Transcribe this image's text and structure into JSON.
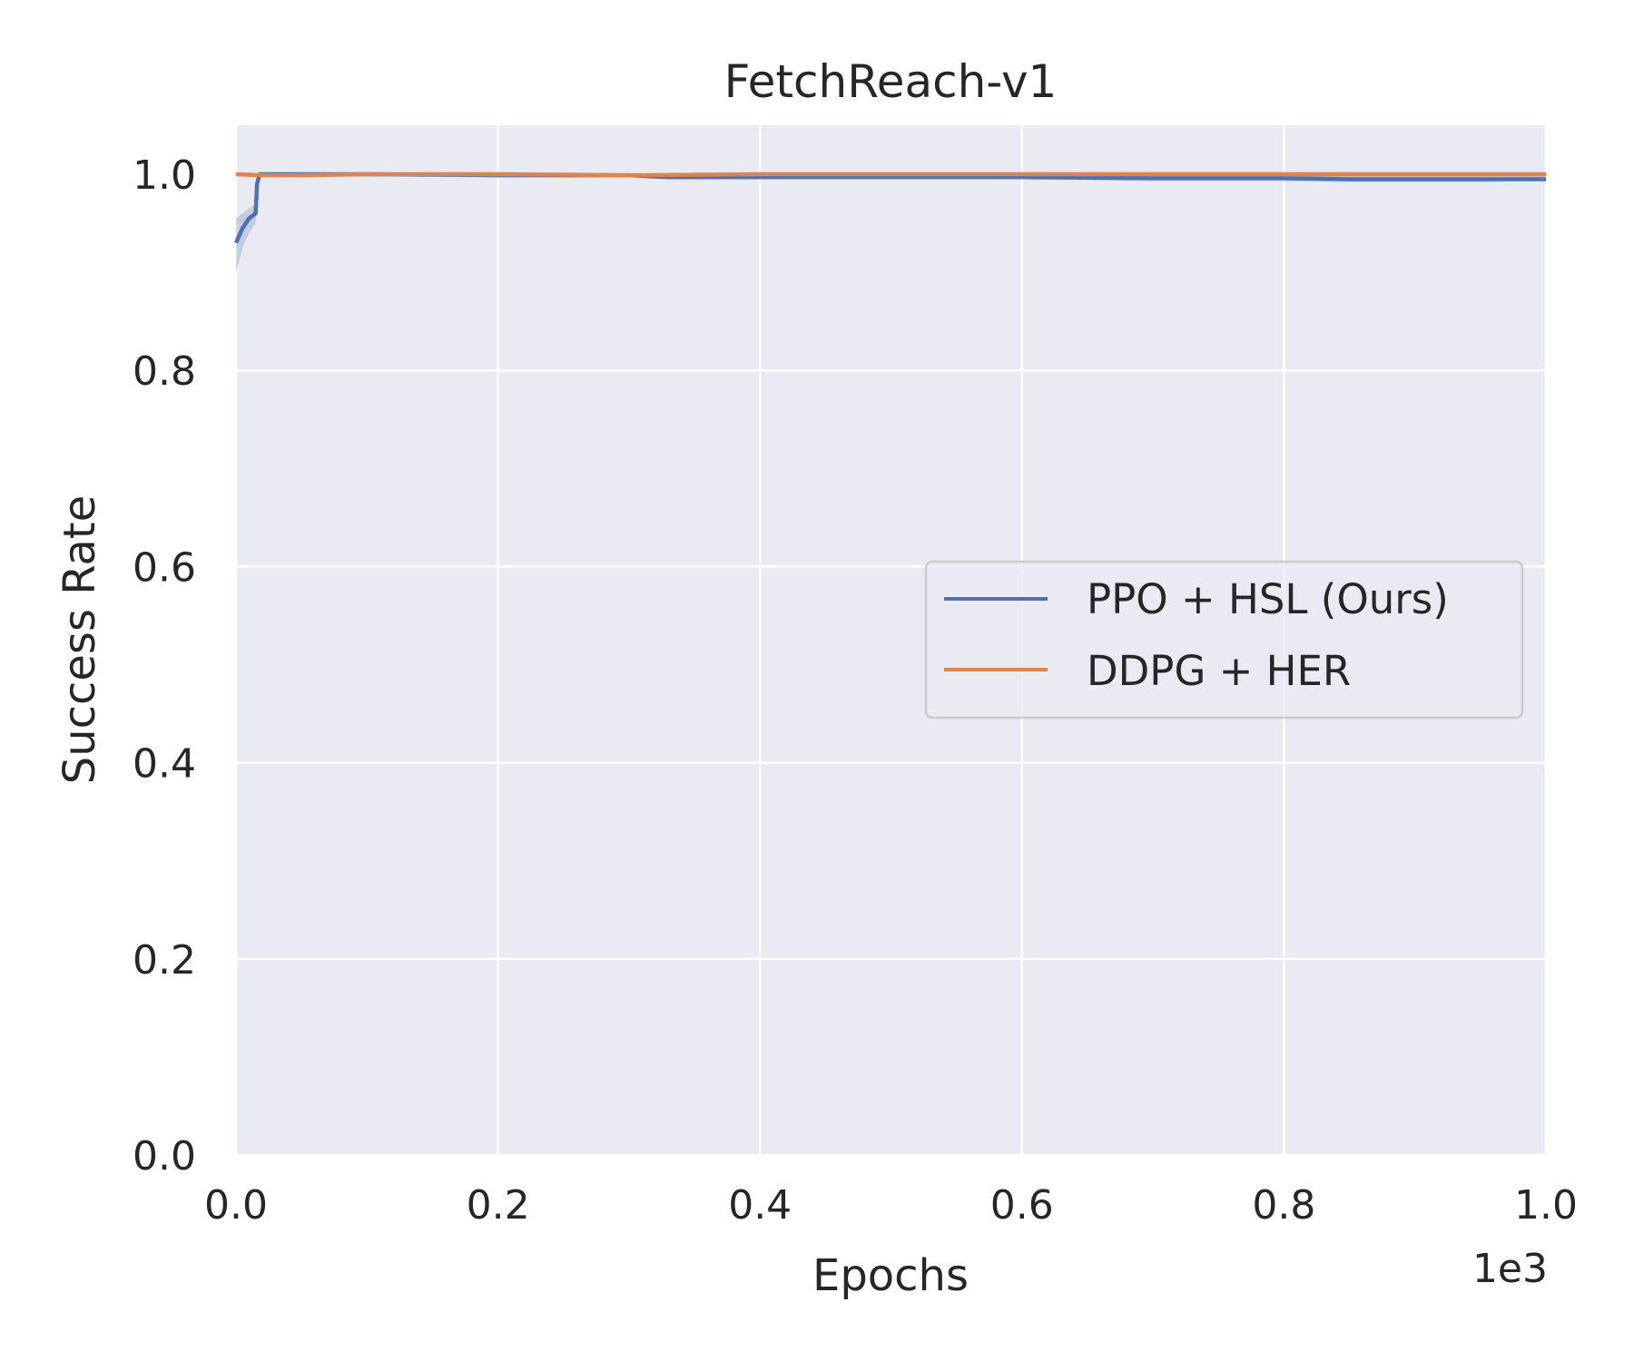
{
  "chart_data": {
    "type": "line",
    "title": "FetchReach-v1",
    "xlabel": "Epochs",
    "ylabel": "Success Rate",
    "x_offset_label": "1e3",
    "xlim": [
      0,
      1000
    ],
    "ylim": [
      0,
      1.05
    ],
    "x_ticks": [
      0,
      200,
      400,
      600,
      800,
      1000
    ],
    "x_tick_labels": [
      "0.0",
      "0.2",
      "0.4",
      "0.6",
      "0.8",
      "1.0"
    ],
    "y_ticks": [
      0,
      0.2,
      0.4,
      0.6,
      0.8,
      1.0
    ],
    "y_tick_labels": [
      "0.0",
      "0.2",
      "0.4",
      "0.6",
      "0.8",
      "1.0"
    ],
    "grid": true,
    "legend_position": "center-right",
    "series": [
      {
        "name": "PPO + HSL (Ours)",
        "color": "#4c72b0",
        "x": [
          0,
          5,
          10,
          15,
          16,
          18,
          20,
          30,
          100,
          200,
          300,
          330,
          400,
          500,
          600,
          700,
          800,
          850,
          900,
          950,
          1000
        ],
        "y": [
          0.93,
          0.945,
          0.955,
          0.96,
          0.99,
          1.0,
          1.0,
          1.0,
          1.0,
          0.999,
          0.999,
          0.997,
          0.997,
          0.997,
          0.997,
          0.996,
          0.996,
          0.995,
          0.995,
          0.995,
          0.995
        ],
        "band_lower": [
          0.9,
          0.925,
          0.94,
          0.95,
          0.98,
          0.995,
          0.998,
          0.998,
          0.998,
          0.997,
          0.997,
          0.995,
          0.995,
          0.995,
          0.995,
          0.993,
          0.993,
          0.992,
          0.992,
          0.992,
          0.993
        ],
        "band_upper": [
          0.955,
          0.96,
          0.965,
          0.97,
          0.998,
          1.0,
          1.0,
          1.0,
          1.0,
          1.0,
          1.0,
          0.999,
          0.999,
          0.999,
          0.999,
          0.999,
          0.999,
          0.998,
          0.998,
          0.998,
          0.998
        ]
      },
      {
        "name": "DDPG + HER",
        "color": "#dd8452",
        "x": [
          0,
          20,
          50,
          100,
          200,
          300,
          400,
          500,
          600,
          700,
          800,
          900,
          1000
        ],
        "y": [
          1.0,
          0.999,
          0.999,
          1.0,
          1.0,
          0.999,
          1.0,
          1.0,
          1.0,
          1.0,
          1.0,
          1.0,
          1.0
        ],
        "band_lower": [
          0.998,
          0.997,
          0.997,
          0.998,
          0.998,
          0.997,
          0.998,
          0.998,
          0.998,
          0.998,
          0.998,
          0.998,
          0.998
        ],
        "band_upper": [
          1.0,
          1.0,
          1.0,
          1.0,
          1.0,
          1.0,
          1.0,
          1.0,
          1.0,
          1.0,
          1.0,
          1.0,
          1.0
        ]
      }
    ]
  }
}
